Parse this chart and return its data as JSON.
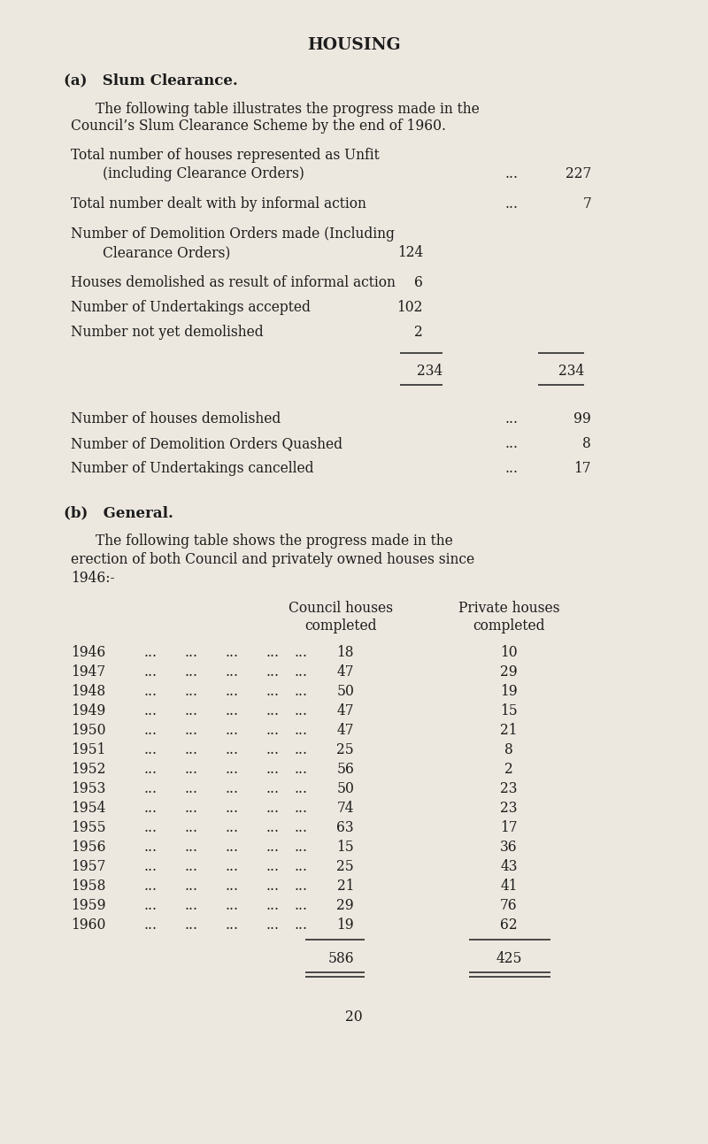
{
  "bg_color": "#ede8df",
  "text_color": "#1c1c1c",
  "title": "HOUSING",
  "years": [
    1946,
    1947,
    1948,
    1949,
    1950,
    1951,
    1952,
    1953,
    1954,
    1955,
    1956,
    1957,
    1958,
    1959,
    1960
  ],
  "council": [
    18,
    47,
    50,
    47,
    47,
    25,
    56,
    50,
    74,
    63,
    15,
    25,
    21,
    29,
    19
  ],
  "private": [
    10,
    29,
    19,
    15,
    21,
    8,
    2,
    23,
    23,
    17,
    36,
    43,
    41,
    76,
    62
  ],
  "council_total": "586",
  "private_total": "425",
  "page_number": "20"
}
